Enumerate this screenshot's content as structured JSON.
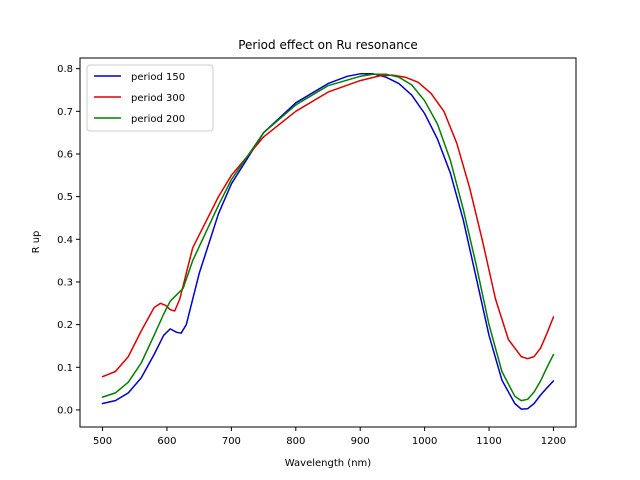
{
  "chart_data": {
    "type": "line",
    "title": "Period effect on Ru resonance",
    "xlabel": "Wavelength (nm)",
    "ylabel": "R up",
    "xlim": [
      465,
      1235
    ],
    "ylim": [
      -0.04,
      0.825
    ],
    "xticks": [
      500,
      600,
      700,
      800,
      900,
      1000,
      1100,
      1200
    ],
    "xtick_labels": [
      "500",
      "600",
      "700",
      "800",
      "900",
      "1000",
      "1100",
      "1200"
    ],
    "yticks": [
      0.0,
      0.1,
      0.2,
      0.3,
      0.4,
      0.5,
      0.6,
      0.7,
      0.8
    ],
    "ytick_labels": [
      "0.0",
      "0.1",
      "0.2",
      "0.3",
      "0.4",
      "0.5",
      "0.6",
      "0.7",
      "0.8"
    ],
    "grid": false,
    "legend_position": "top-left",
    "series": [
      {
        "name": "period 150",
        "color": "#0000cc",
        "x": [
          500,
          520,
          540,
          560,
          580,
          595,
          605,
          615,
          622,
          630,
          650,
          680,
          700,
          750,
          800,
          850,
          880,
          900,
          920,
          940,
          960,
          980,
          1000,
          1020,
          1040,
          1060,
          1080,
          1100,
          1120,
          1140,
          1150,
          1160,
          1170,
          1180,
          1190,
          1200
        ],
        "y": [
          0.015,
          0.022,
          0.04,
          0.075,
          0.13,
          0.175,
          0.19,
          0.182,
          0.18,
          0.2,
          0.32,
          0.46,
          0.53,
          0.65,
          0.72,
          0.765,
          0.782,
          0.788,
          0.788,
          0.78,
          0.765,
          0.738,
          0.695,
          0.635,
          0.555,
          0.445,
          0.31,
          0.175,
          0.07,
          0.015,
          0.002,
          0.003,
          0.015,
          0.035,
          0.052,
          0.068
        ]
      },
      {
        "name": "period 300",
        "color": "#dd0000",
        "x": [
          500,
          520,
          540,
          560,
          580,
          590,
          598,
          605,
          612,
          620,
          640,
          680,
          700,
          750,
          800,
          850,
          900,
          930,
          950,
          970,
          990,
          1010,
          1030,
          1050,
          1070,
          1090,
          1110,
          1130,
          1150,
          1160,
          1170,
          1180,
          1190,
          1200
        ],
        "y": [
          0.078,
          0.09,
          0.125,
          0.185,
          0.24,
          0.25,
          0.245,
          0.235,
          0.232,
          0.26,
          0.38,
          0.5,
          0.55,
          0.64,
          0.7,
          0.745,
          0.772,
          0.783,
          0.785,
          0.78,
          0.768,
          0.742,
          0.7,
          0.625,
          0.52,
          0.395,
          0.26,
          0.165,
          0.125,
          0.12,
          0.125,
          0.145,
          0.18,
          0.218
        ]
      },
      {
        "name": "period 200",
        "color": "#008000",
        "x": [
          500,
          520,
          540,
          560,
          580,
          595,
          605,
          615,
          625,
          640,
          680,
          700,
          750,
          800,
          850,
          900,
          920,
          940,
          960,
          980,
          1000,
          1020,
          1040,
          1060,
          1080,
          1100,
          1120,
          1140,
          1150,
          1160,
          1170,
          1180,
          1190,
          1200
        ],
        "y": [
          0.03,
          0.04,
          0.065,
          0.11,
          0.175,
          0.225,
          0.255,
          0.27,
          0.285,
          0.35,
          0.48,
          0.54,
          0.65,
          0.715,
          0.76,
          0.782,
          0.787,
          0.787,
          0.78,
          0.762,
          0.725,
          0.67,
          0.585,
          0.47,
          0.34,
          0.2,
          0.09,
          0.032,
          0.022,
          0.025,
          0.042,
          0.068,
          0.1,
          0.13
        ]
      }
    ]
  }
}
